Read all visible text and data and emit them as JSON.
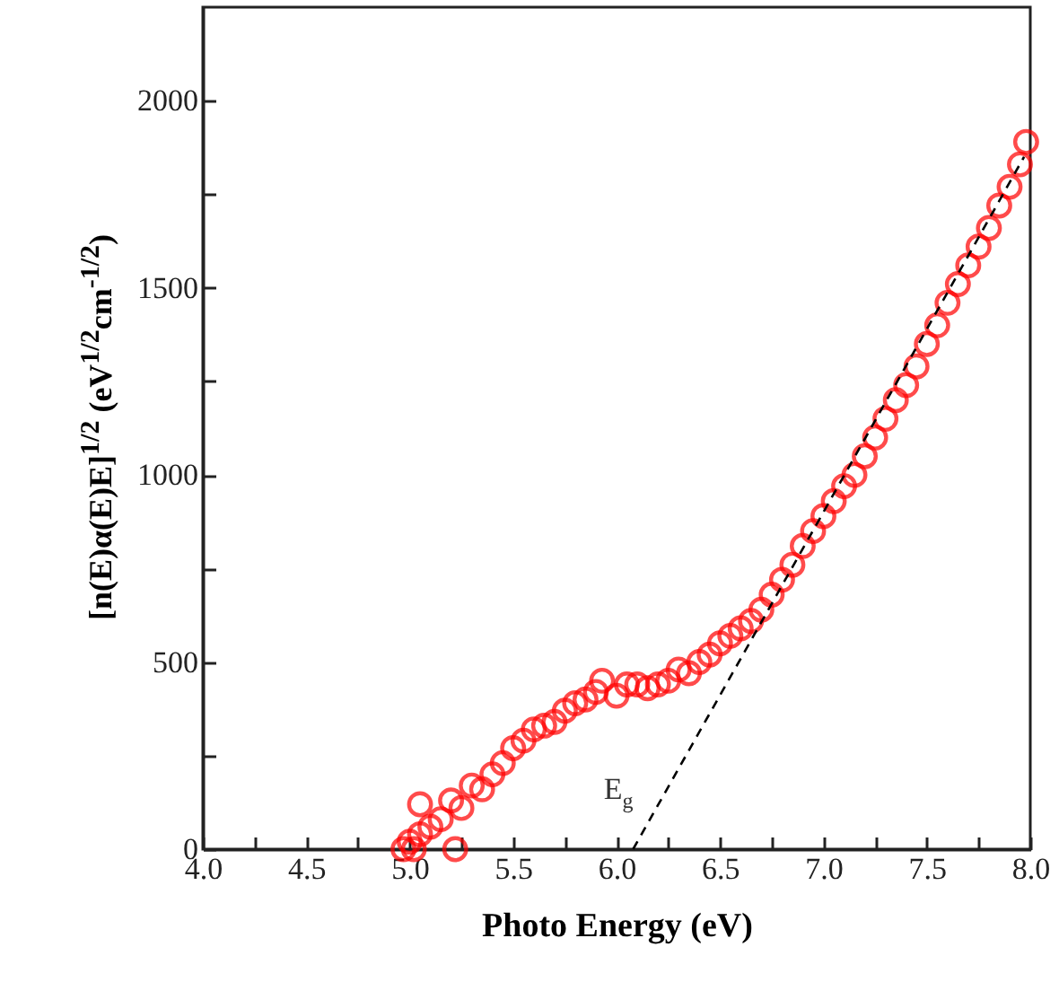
{
  "chart_data": {
    "type": "scatter",
    "xlabel": "Photo Energy (eV)",
    "ylabel": "[n(E)α(E)E]$^{1/2}$ (eV$^{1/2}$cm$^{-1/2}$)",
    "xlim": [
      4.0,
      8.0
    ],
    "ylim": [
      0,
      2250
    ],
    "xticks": [
      {
        "value": 4,
        "label": "4.0"
      },
      {
        "value": 4.25,
        "label": null
      },
      {
        "value": 4.5,
        "label": "4.5"
      },
      {
        "value": 4.75,
        "label": null
      },
      {
        "value": 5,
        "label": "5.0"
      },
      {
        "value": 5.25,
        "label": null
      },
      {
        "value": 5.5,
        "label": "5.5"
      },
      {
        "value": 5.75,
        "label": null
      },
      {
        "value": 6,
        "label": "6.0"
      },
      {
        "value": 6.25,
        "label": null
      },
      {
        "value": 6.5,
        "label": "6.5"
      },
      {
        "value": 6.75,
        "label": null
      },
      {
        "value": 7,
        "label": "7.0"
      },
      {
        "value": 7.25,
        "label": null
      },
      {
        "value": 7.5,
        "label": "7.5"
      },
      {
        "value": 7.75,
        "label": null
      },
      {
        "value": 8,
        "label": "8.0"
      }
    ],
    "yticks": [
      0,
      {
        "value": 250,
        "label": null
      },
      500,
      {
        "value": 750,
        "label": null
      },
      1000,
      {
        "value": 1250,
        "label": null
      },
      1500,
      {
        "value": 1750,
        "label": null
      },
      2000
    ],
    "grid": false,
    "annotations": [
      "E$_{g}$"
    ],
    "series": [
      {
        "color": "#ff0000",
        "marker": "circle",
        "x": [
          4.97,
          5.0,
          5.02,
          5.05,
          5.05,
          5.1,
          5.15,
          5.2,
          5.22,
          5.25,
          5.3,
          5.35,
          5.4,
          5.45,
          5.5,
          5.55,
          5.6,
          5.65,
          5.7,
          5.75,
          5.8,
          5.85,
          5.9,
          5.93,
          6.0,
          6.05,
          6.1,
          6.15,
          6.2,
          6.25,
          6.3,
          6.35,
          6.4,
          6.45,
          6.5,
          6.55,
          6.6,
          6.65,
          6.7,
          6.75,
          6.8,
          6.85,
          6.9,
          6.95,
          7.0,
          7.05,
          7.1,
          7.15,
          7.2,
          7.25,
          7.3,
          7.35,
          7.4,
          7.45,
          7.5,
          7.55,
          7.6,
          7.65,
          7.7,
          7.75,
          7.8,
          7.85,
          7.9,
          7.95,
          7.98
        ],
        "values": [
          0,
          20,
          0,
          120,
          40,
          60,
          80,
          130,
          0,
          110,
          170,
          160,
          200,
          230,
          270,
          290,
          320,
          330,
          340,
          370,
          390,
          400,
          420,
          450,
          410,
          440,
          440,
          430,
          440,
          450,
          480,
          470,
          500,
          520,
          550,
          570,
          590,
          610,
          640,
          680,
          720,
          760,
          810,
          850,
          890,
          930,
          970,
          1000,
          1050,
          1100,
          1150,
          1200,
          1240,
          1290,
          1350,
          1400,
          1460,
          1510,
          1560,
          1610,
          1660,
          1720,
          1770,
          1830,
          1890
        ]
      },
      {
        "type": "line",
        "color": "#000000",
        "line_style": "dashed",
        "x": [
          6.08,
          7.97
        ],
        "values": [
          0,
          1850
        ]
      }
    ]
  }
}
